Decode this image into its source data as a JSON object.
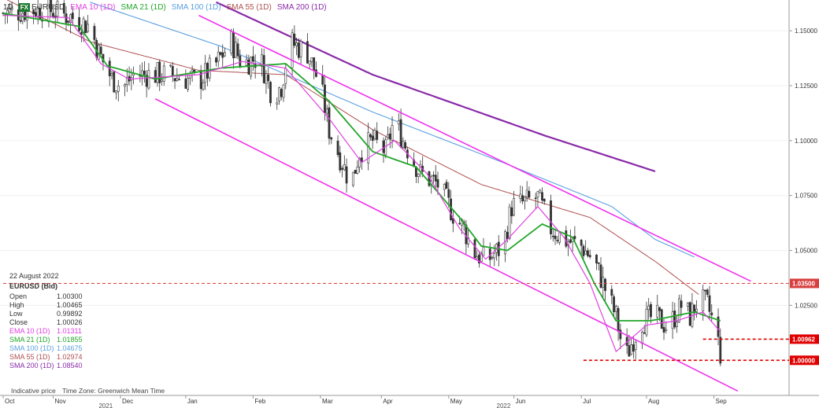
{
  "legend": {
    "timeframe": "1D",
    "badge": "FX",
    "symbol": "EURUSD",
    "items": [
      {
        "label": "EMA 10 (1D)",
        "color": "#e040e0"
      },
      {
        "label": "SMA 21 (1D)",
        "color": "#22a62a"
      },
      {
        "label": "SMA 100 (1D)",
        "color": "#5aa0e0"
      },
      {
        "label": "SMA 55 (1D)",
        "color": "#b05050"
      },
      {
        "label": "SMA 200 (1D)",
        "color": "#8a2aa8"
      }
    ]
  },
  "ohlc_panel": {
    "date": "22 August 2022",
    "title": "EURUSD (Bid)",
    "rows": [
      {
        "k": "Open",
        "v": "1.00300",
        "color": "#333333"
      },
      {
        "k": "High",
        "v": "1.00465",
        "color": "#333333"
      },
      {
        "k": "Low",
        "v": "0.99892",
        "color": "#333333"
      },
      {
        "k": "Close",
        "v": "1.00026",
        "color": "#333333"
      },
      {
        "k": "EMA 10 (1D)",
        "v": "1.01311",
        "color": "#e040e0"
      },
      {
        "k": "SMA 21 (1D)",
        "v": "1.01855",
        "color": "#22a62a"
      },
      {
        "k": "SMA 100 (1D)",
        "v": "1.04675",
        "color": "#5aa0e0"
      },
      {
        "k": "SMA 55 (1D)",
        "v": "1.02974",
        "color": "#b05050"
      },
      {
        "k": "SMA 200 (1D)",
        "v": "1.08540",
        "color": "#8a2aa8"
      }
    ]
  },
  "footer": {
    "left": "Indicative price",
    "right": "Time Zone: Greenwich Mean Time"
  },
  "chart_data": {
    "type": "candlestick",
    "ylim": [
      0.984,
      1.164
    ],
    "y_ticks": [
      "1.15000",
      "1.12500",
      "1.10000",
      "1.07500",
      "1.05000",
      "1.02500"
    ],
    "x_ticks": [
      "Oct",
      "Nov",
      "Dec",
      "Jan",
      "Feb",
      "Mar",
      "Apr",
      "May",
      "Jun",
      "Jul",
      "Aug",
      "Sep"
    ],
    "year_labels": [
      "2021",
      "2022"
    ],
    "candle_anchors": [
      [
        0,
        1.158
      ],
      [
        20,
        1.16
      ],
      [
        32,
        1.156
      ],
      [
        40,
        1.152
      ],
      [
        44,
        1.14
      ],
      [
        50,
        1.128
      ],
      [
        55,
        1.124
      ],
      [
        60,
        1.13
      ],
      [
        75,
        1.13
      ],
      [
        90,
        1.127
      ],
      [
        98,
        1.135
      ],
      [
        105,
        1.145
      ],
      [
        110,
        1.135
      ],
      [
        118,
        1.138
      ],
      [
        124,
        1.12
      ],
      [
        128,
        1.125
      ],
      [
        132,
        1.145
      ],
      [
        140,
        1.14
      ],
      [
        146,
        1.125
      ],
      [
        150,
        1.105
      ],
      [
        156,
        1.09
      ],
      [
        160,
        1.08
      ],
      [
        164,
        1.095
      ],
      [
        170,
        1.1
      ],
      [
        176,
        1.095
      ],
      [
        180,
        1.11
      ],
      [
        184,
        1.1
      ],
      [
        192,
        1.085
      ],
      [
        200,
        1.08
      ],
      [
        208,
        1.065
      ],
      [
        212,
        1.06
      ],
      [
        216,
        1.05
      ],
      [
        222,
        1.045
      ],
      [
        230,
        1.052
      ],
      [
        234,
        1.07
      ],
      [
        240,
        1.072
      ],
      [
        246,
        1.074
      ],
      [
        252,
        1.06
      ],
      [
        258,
        1.055
      ],
      [
        266,
        1.052
      ],
      [
        272,
        1.045
      ],
      [
        278,
        1.03
      ],
      [
        282,
        1.02
      ],
      [
        286,
        1.0
      ],
      [
        290,
        1.01
      ],
      [
        294,
        1.018
      ],
      [
        300,
        1.02
      ],
      [
        306,
        1.015
      ],
      [
        312,
        1.025
      ],
      [
        316,
        1.02
      ],
      [
        320,
        1.028
      ],
      [
        324,
        1.025
      ],
      [
        328,
        1.013
      ],
      [
        330,
        1.003
      ]
    ],
    "channel": {
      "color": "#f030f0",
      "upper": [
        [
          90,
          1.157
        ],
        [
          344,
          1.036
        ]
      ],
      "lower": [
        [
          70,
          1.119
        ],
        [
          338,
          0.986
        ]
      ]
    },
    "horizontal_levels": [
      {
        "value": 1.035,
        "label": "1.03500",
        "x_start": 0,
        "color": "#d84040"
      },
      {
        "value": 1.00962,
        "label": "1.00962",
        "x_start": 322,
        "color": "#e00000"
      },
      {
        "value": 1.0,
        "label": "1.00000",
        "x_start": 267,
        "color": "#e00000"
      }
    ],
    "sma200_anchors": [
      [
        98,
        1.163
      ],
      [
        170,
        1.13
      ],
      [
        250,
        1.102
      ],
      [
        300,
        1.086
      ]
    ],
    "sma100_anchors": [
      [
        40,
        1.163
      ],
      [
        100,
        1.143
      ],
      [
        170,
        1.113
      ],
      [
        230,
        1.09
      ],
      [
        280,
        1.07
      ],
      [
        300,
        1.055
      ],
      [
        318,
        1.047
      ]
    ],
    "sma55_anchors": [
      [
        0,
        1.165
      ],
      [
        40,
        1.145
      ],
      [
        90,
        1.132
      ],
      [
        130,
        1.13
      ],
      [
        170,
        1.105
      ],
      [
        220,
        1.08
      ],
      [
        270,
        1.065
      ],
      [
        300,
        1.045
      ],
      [
        320,
        1.03
      ]
    ],
    "sma21_anchors": [
      [
        0,
        1.158
      ],
      [
        35,
        1.152
      ],
      [
        48,
        1.134
      ],
      [
        70,
        1.128
      ],
      [
        100,
        1.133
      ],
      [
        130,
        1.135
      ],
      [
        150,
        1.118
      ],
      [
        170,
        1.095
      ],
      [
        190,
        1.088
      ],
      [
        210,
        1.065
      ],
      [
        220,
        1.052
      ],
      [
        232,
        1.05
      ],
      [
        248,
        1.062
      ],
      [
        262,
        1.056
      ],
      [
        272,
        1.035
      ],
      [
        282,
        1.018
      ],
      [
        298,
        1.018
      ],
      [
        318,
        1.022
      ],
      [
        330,
        1.018
      ]
    ],
    "ema10_anchors": [
      [
        0,
        1.157
      ],
      [
        30,
        1.156
      ],
      [
        45,
        1.135
      ],
      [
        58,
        1.128
      ],
      [
        90,
        1.13
      ],
      [
        110,
        1.136
      ],
      [
        130,
        1.133
      ],
      [
        150,
        1.11
      ],
      [
        165,
        1.09
      ],
      [
        180,
        1.1
      ],
      [
        195,
        1.085
      ],
      [
        210,
        1.06
      ],
      [
        222,
        1.046
      ],
      [
        232,
        1.055
      ],
      [
        246,
        1.07
      ],
      [
        258,
        1.056
      ],
      [
        270,
        1.035
      ],
      [
        282,
        1.004
      ],
      [
        296,
        1.016
      ],
      [
        310,
        1.018
      ],
      [
        322,
        1.022
      ],
      [
        330,
        1.013
      ]
    ]
  }
}
